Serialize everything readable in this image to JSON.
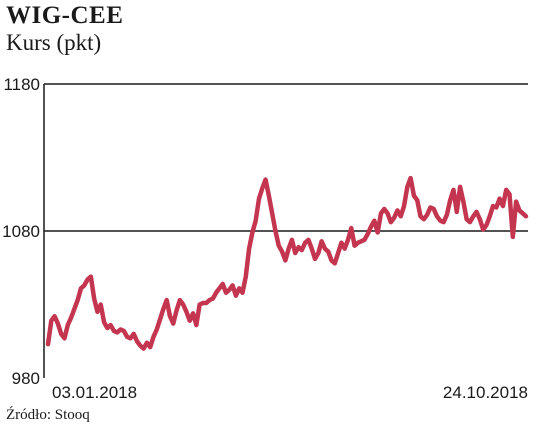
{
  "header": {
    "title": "WIG-CEE",
    "subtitle": "Kurs (pkt)"
  },
  "footer": {
    "source": "Źródło: Stooq"
  },
  "colors": {
    "line": "#c4364f",
    "axis": "#1a1a1a",
    "grid": "#1a1a1a"
  },
  "chart_data": {
    "type": "line",
    "title": "WIG-CEE",
    "ylabel": "Kurs (pkt)",
    "xlabel": "",
    "ylim": [
      980,
      1180
    ],
    "yticks": [
      "1180",
      "1080",
      "980"
    ],
    "grid": "horizontal line at 1080",
    "x_range_labels": [
      "03.01.2018",
      "24.10.2018"
    ],
    "series": [
      {
        "values": [
          1003,
          1019,
          1022,
          1017,
          1010,
          1007,
          1016,
          1021,
          1027,
          1033,
          1041,
          1043,
          1047,
          1049,
          1034,
          1025,
          1030,
          1018,
          1014,
          1016,
          1012,
          1011,
          1013,
          1012,
          1008,
          1007,
          1010,
          1005,
          1002,
          1000,
          1004,
          1001,
          1008,
          1013,
          1020,
          1027,
          1033,
          1022,
          1017,
          1026,
          1033,
          1030,
          1025,
          1019,
          1024,
          1016,
          1030,
          1031,
          1031,
          1033,
          1034,
          1038,
          1041,
          1044,
          1038,
          1040,
          1043,
          1036,
          1041,
          1038,
          1049,
          1068,
          1079,
          1087,
          1102,
          1109,
          1115,
          1104,
          1092,
          1080,
          1070,
          1066,
          1060,
          1068,
          1074,
          1065,
          1069,
          1067,
          1072,
          1074,
          1068,
          1061,
          1065,
          1073,
          1068,
          1066,
          1060,
          1058,
          1065,
          1072,
          1068,
          1074,
          1082,
          1070,
          1072,
          1073,
          1074,
          1078,
          1083,
          1087,
          1079,
          1092,
          1095,
          1092,
          1086,
          1089,
          1094,
          1090,
          1097,
          1110,
          1116,
          1104,
          1101,
          1090,
          1088,
          1091,
          1096,
          1095,
          1090,
          1087,
          1086,
          1091,
          1101,
          1108,
          1093,
          1110,
          1100,
          1088,
          1086,
          1090,
          1093,
          1088,
          1081,
          1084,
          1090,
          1097,
          1096,
          1102,
          1097,
          1108,
          1105,
          1076,
          1100,
          1094,
          1092,
          1090
        ]
      }
    ]
  }
}
